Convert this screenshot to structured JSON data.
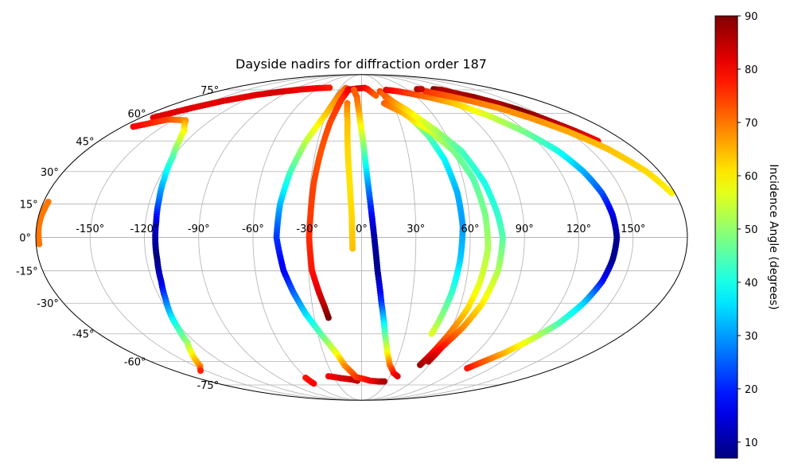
{
  "chart_data": {
    "type": "scatter",
    "projection": "mollweide",
    "title": "Dayside nadirs for diffraction order 187",
    "grid": true,
    "lon_ticks": [
      "-150°",
      "-120°",
      "-90°",
      "-60°",
      "-30°",
      "0°",
      "30°",
      "60°",
      "90°",
      "120°",
      "150°"
    ],
    "lon_tick_values": [
      -150,
      -120,
      -90,
      -60,
      -30,
      0,
      30,
      60,
      90,
      120,
      150
    ],
    "lat_ticks": [
      "75°",
      "60°",
      "45°",
      "30°",
      "15°",
      "0°",
      "-15°",
      "-30°",
      "-45°",
      "-60°",
      "-75°"
    ],
    "lat_tick_values": [
      75,
      60,
      45,
      30,
      15,
      0,
      -15,
      -30,
      -45,
      -60,
      -75
    ],
    "colorbar": {
      "label": "Incidence Angle (degrees)",
      "colormap": "jet",
      "range": [
        7,
        90
      ],
      "ticks": [
        "10",
        "20",
        "30",
        "40",
        "50",
        "60",
        "70",
        "80",
        "90"
      ],
      "tick_values": [
        10,
        20,
        30,
        40,
        50,
        60,
        70,
        80,
        90
      ]
    },
    "series": [
      {
        "points": [
          [
            -178.3,
            -3.0,
            70
          ],
          [
            -178.5,
            0.0,
            70
          ],
          [
            -178.8,
            5.0,
            70
          ],
          [
            -178.5,
            10.0,
            70
          ],
          [
            -177.4,
            16.0,
            70
          ]
        ]
      },
      {
        "points": [
          [
            -170.0,
            57.5,
            82
          ],
          [
            -155.0,
            63.0,
            82
          ],
          [
            -140.0,
            67.5,
            82
          ],
          [
            -120.0,
            71.5,
            82
          ],
          [
            -100.0,
            73.7,
            83
          ],
          [
            -80.0,
            75.3,
            81
          ],
          [
            -60.0,
            76.3,
            80
          ],
          [
            -45.0,
            76.6,
            78
          ]
        ]
      },
      {
        "points": [
          [
            -172.0,
            52.5,
            80
          ],
          [
            -155.0,
            56.5,
            74
          ],
          [
            -140.0,
            56.0,
            68
          ],
          [
            -130.0,
            50.5,
            60
          ],
          [
            -125.0,
            45.0,
            54
          ],
          [
            -120.0,
            37.0,
            45
          ],
          [
            -117.0,
            27.0,
            36
          ],
          [
            -115.0,
            17.0,
            27
          ],
          [
            -114.0,
            7.0,
            16
          ],
          [
            -114.0,
            0.0,
            10
          ],
          [
            -114.0,
            -10.0,
            7
          ],
          [
            -115.0,
            -20.0,
            14
          ],
          [
            -117.0,
            -28.0,
            25
          ],
          [
            -120.0,
            -36.0,
            35
          ],
          [
            -122.0,
            -42.0,
            42
          ],
          [
            -126.0,
            -49.5,
            50
          ],
          [
            -133.0,
            -55.0,
            58
          ],
          [
            -140.0,
            -59.5,
            64
          ],
          [
            -145.0,
            -62.5,
            68
          ],
          [
            -150.0,
            -64.0,
            72
          ],
          [
            -155.0,
            -65.5,
            77
          ]
        ]
      },
      {
        "points": [
          [
            -61.0,
            -70.0,
            78
          ],
          [
            -60.0,
            -74.0,
            80
          ]
        ]
      },
      {
        "points": [
          [
            -35.0,
            -69.0,
            80
          ],
          [
            -20.0,
            -70.5,
            83
          ],
          [
            -10.0,
            -71.3,
            84
          ],
          [
            -5.0,
            -72.0,
            86
          ]
        ]
      },
      {
        "points": [
          [
            -22.0,
            76.4,
            72
          ],
          [
            -25.0,
            72.5,
            70
          ],
          [
            -30.0,
            60.0,
            64
          ],
          [
            -38.0,
            45.0,
            54
          ],
          [
            -43.0,
            30.0,
            44
          ],
          [
            -46.0,
            15.0,
            33
          ],
          [
            -47.0,
            0.0,
            22
          ],
          [
            -44.0,
            -15.0,
            16
          ],
          [
            -40.0,
            -25.0,
            25
          ],
          [
            -35.0,
            -35.0,
            35
          ],
          [
            -28.0,
            -45.0,
            45
          ],
          [
            -20.0,
            -55.0,
            57
          ],
          [
            -15.0,
            -62.5,
            68
          ],
          [
            -6.0,
            -69.5,
            75
          ],
          [
            10.0,
            -72.0,
            80
          ],
          [
            20.0,
            -72.5,
            84
          ],
          [
            27.0,
            -72.5,
            86
          ]
        ]
      },
      {
        "points": [
          [
            -18.0,
            75.0,
            86
          ],
          [
            -6.0,
            76.0,
            84
          ],
          [
            4.0,
            76.5,
            80
          ],
          [
            8.0,
            75.5,
            78
          ],
          [
            16.0,
            71.0,
            72
          ]
        ]
      },
      {
        "points": [
          [
            -17.0,
            75.5,
            82
          ],
          [
            -21.0,
            68.0,
            76
          ],
          [
            -24.5,
            55.0,
            74
          ],
          [
            -26.5,
            40.0,
            73
          ],
          [
            -28.0,
            25.0,
            74
          ],
          [
            -28.5,
            10.0,
            75
          ],
          [
            -29.0,
            0.0,
            76
          ],
          [
            -28.0,
            -15.0,
            78
          ],
          [
            -25.0,
            -25.0,
            82
          ],
          [
            -22.5,
            -32.0,
            86
          ],
          [
            -21.0,
            -37.0,
            90
          ]
        ]
      },
      {
        "points": [
          [
            -14.0,
            66.0,
            70
          ],
          [
            -11.0,
            55.0,
            64
          ],
          [
            -9.0,
            40.0,
            62
          ],
          [
            -7.0,
            25.0,
            61
          ],
          [
            -5.5,
            10.0,
            62
          ],
          [
            -5.0,
            -5.0,
            64
          ]
        ]
      },
      {
        "points": [
          [
            -10.0,
            75.0,
            72
          ],
          [
            -5.0,
            70.0,
            72
          ],
          [
            -2.0,
            60.0,
            66
          ],
          [
            1.0,
            45.0,
            52
          ],
          [
            3.0,
            30.0,
            36
          ],
          [
            5.0,
            15.0,
            22
          ],
          [
            7.0,
            0.0,
            10
          ],
          [
            9.0,
            -15.0,
            8
          ],
          [
            12.0,
            -30.0,
            22
          ],
          [
            16.0,
            -45.0,
            45
          ],
          [
            20.0,
            -55.0,
            58
          ],
          [
            25.0,
            -62.0,
            70
          ],
          [
            32.0,
            -67.0,
            78
          ],
          [
            38.0,
            -69.0,
            82
          ]
        ]
      },
      {
        "points": [
          [
            23.0,
            74.0,
            74
          ],
          [
            30.0,
            68.0,
            67
          ],
          [
            38.0,
            60.0,
            58
          ],
          [
            47.0,
            48.0,
            46
          ],
          [
            52.0,
            36.0,
            38
          ],
          [
            55.0,
            20.0,
            32
          ],
          [
            56.0,
            5.0,
            30
          ],
          [
            55.0,
            -10.0,
            34
          ],
          [
            53.0,
            -25.0,
            42
          ],
          [
            50.0,
            -38.0,
            50
          ],
          [
            48.0,
            -45.0,
            56
          ]
        ]
      },
      {
        "points": [
          [
            22.0,
            66.0,
            72
          ],
          [
            36.0,
            60.0,
            65
          ],
          [
            50.0,
            50.0,
            56
          ],
          [
            60.0,
            40.0,
            48
          ],
          [
            66.0,
            27.0,
            45
          ],
          [
            69.0,
            10.0,
            48
          ],
          [
            70.0,
            -5.0,
            52
          ],
          [
            68.0,
            -20.0,
            56
          ],
          [
            65.0,
            -33.0,
            62
          ],
          [
            60.0,
            -45.0,
            70
          ],
          [
            55.0,
            -56.0,
            80
          ],
          [
            52.0,
            -62.0,
            87
          ]
        ]
      },
      {
        "points": [
          [
            26.0,
            70.0,
            72
          ],
          [
            40.0,
            62.0,
            62
          ],
          [
            55.0,
            50.0,
            52
          ],
          [
            65.0,
            40.0,
            44
          ],
          [
            72.0,
            25.0,
            40
          ],
          [
            76.0,
            10.0,
            42
          ],
          [
            78.0,
            0.0,
            45
          ],
          [
            77.0,
            -15.0,
            52
          ],
          [
            73.0,
            -30.0,
            60
          ],
          [
            67.0,
            -42.0,
            68
          ],
          [
            60.0,
            -52.0,
            78
          ],
          [
            57.0,
            -60.0,
            86
          ]
        ]
      },
      {
        "points": [
          [
            32.0,
            75.0,
            82
          ],
          [
            45.0,
            74.0,
            78
          ],
          [
            60.0,
            72.0,
            74
          ],
          [
            75.0,
            69.5,
            70
          ],
          [
            90.0,
            66.0,
            64
          ],
          [
            105.0,
            59.0,
            56
          ],
          [
            118.0,
            50.0,
            48
          ],
          [
            128.0,
            40.0,
            40
          ],
          [
            134.0,
            30.0,
            32
          ],
          [
            138.0,
            20.0,
            24
          ],
          [
            140.0,
            10.0,
            15
          ],
          [
            141.0,
            0.0,
            9
          ],
          [
            140.0,
            -10.0,
            8
          ],
          [
            138.0,
            -20.0,
            18
          ],
          [
            134.0,
            -30.0,
            34
          ],
          [
            128.0,
            -40.0,
            44
          ],
          [
            120.0,
            -48.0,
            55
          ],
          [
            112.0,
            -55.0,
            64
          ],
          [
            104.0,
            -60.0,
            72
          ],
          [
            98.0,
            -64.0,
            78
          ]
        ]
      },
      {
        "points": [
          [
            96.0,
            75.5,
            90
          ],
          [
            104.0,
            75.0,
            86
          ],
          [
            112.0,
            72.5,
            86
          ],
          [
            122.0,
            70.0,
            88
          ],
          [
            132.0,
            66.0,
            86
          ],
          [
            140.0,
            62.0,
            90
          ],
          [
            148.0,
            56.0,
            86
          ],
          [
            156.0,
            50.0,
            84
          ],
          [
            162.0,
            45.0,
            80
          ]
        ]
      },
      {
        "points": [
          [
            80.0,
            74.0,
            76
          ],
          [
            90.0,
            72.0,
            74
          ],
          [
            100.0,
            70.0,
            72
          ],
          [
            112.0,
            67.0,
            70
          ],
          [
            125.0,
            63.0,
            68
          ],
          [
            137.0,
            57.5,
            68
          ],
          [
            150.0,
            50.0,
            66
          ],
          [
            162.0,
            41.0,
            64
          ],
          [
            172.0,
            30.0,
            62
          ],
          [
            178.0,
            20.0,
            60
          ]
        ]
      },
      {
        "points": [
          [
            74.0,
            75.5,
            86
          ],
          [
            80.0,
            75.5,
            84
          ]
        ]
      }
    ]
  }
}
